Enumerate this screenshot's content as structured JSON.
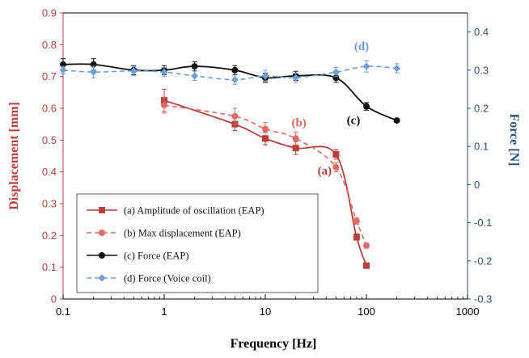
{
  "chart_data": {
    "type": "line",
    "xlabel": "Frequency [Hz]",
    "ylabel": "Displacement [mm]",
    "y2label": "Force [N]",
    "xscale": "log",
    "xlim": [
      0.1,
      1000
    ],
    "ylim": [
      0,
      0.9
    ],
    "y2lim": [
      -0.3,
      0.45
    ],
    "xticks": [
      "0.1",
      "1",
      "10",
      "100",
      "1000"
    ],
    "yticks": [
      "0",
      "0.1",
      "0.2",
      "0.3",
      "0.4",
      "0.5",
      "0.6",
      "0.7",
      "0.8",
      "0.9"
    ],
    "y2ticks": [
      "-0.3",
      "-0.2",
      "-0.1",
      "0",
      "0.1",
      "0.2",
      "0.3",
      "0.4"
    ],
    "grid": false,
    "legend_position": "bottom-left",
    "series": [
      {
        "name": "(a) Amplitude of oscillation (EAP)",
        "label": "(a)",
        "axis": "left",
        "color": "#b5403c",
        "marker": "square",
        "line": "solid",
        "x": [
          1,
          5,
          10,
          20,
          50,
          80,
          100
        ],
        "y": [
          0.625,
          0.55,
          0.505,
          0.475,
          0.455,
          0.195,
          0.105
        ],
        "err": [
          0.035,
          0.02,
          0.02,
          0.02,
          0.015,
          0.01,
          0.005
        ]
      },
      {
        "name": "(b) Max displacement (EAP)",
        "label": "(b)",
        "axis": "left",
        "color": "#de6b64",
        "marker": "circle",
        "line": "dashed",
        "x": [
          1,
          5,
          10,
          20,
          50,
          80,
          100
        ],
        "y": [
          0.61,
          0.575,
          0.535,
          0.505,
          0.415,
          0.245,
          0.168
        ],
        "err": [
          0.025,
          0.025,
          0.02,
          0.02,
          0.015,
          0.01,
          0.008
        ]
      },
      {
        "name": "(c) Force (EAP)",
        "label": "(c)",
        "axis": "right",
        "color": "#111111",
        "marker": "circle",
        "line": "solid",
        "x": [
          0.1,
          0.2,
          0.5,
          1,
          2,
          5,
          10,
          20,
          50,
          100,
          200
        ],
        "y": [
          0.315,
          0.315,
          0.3,
          0.3,
          0.31,
          0.3,
          0.28,
          0.285,
          0.28,
          0.205,
          0.168
        ],
        "err": [
          0.015,
          0.015,
          0.012,
          0.012,
          0.012,
          0.012,
          0.012,
          0.012,
          0.012,
          0.01,
          0.005
        ]
      },
      {
        "name": "(d) Force (Voice coil)",
        "label": "(d)",
        "axis": "right",
        "color": "#6e9ed6",
        "marker": "diamond",
        "line": "dashed",
        "x": [
          0.1,
          0.2,
          0.5,
          1,
          2,
          5,
          10,
          20,
          50,
          100,
          200
        ],
        "y": [
          0.3,
          0.295,
          0.298,
          0.295,
          0.285,
          0.275,
          0.285,
          0.28,
          0.295,
          0.31,
          0.305
        ],
        "err": [
          0.01,
          0.015,
          0.012,
          0.012,
          0.012,
          0.012,
          0.015,
          0.012,
          0.012,
          0.015,
          0.012
        ]
      }
    ]
  },
  "colors": {
    "left_axis": "#b5403c",
    "right_axis": "#2b4f7a",
    "bottom_axis": "#000000"
  }
}
